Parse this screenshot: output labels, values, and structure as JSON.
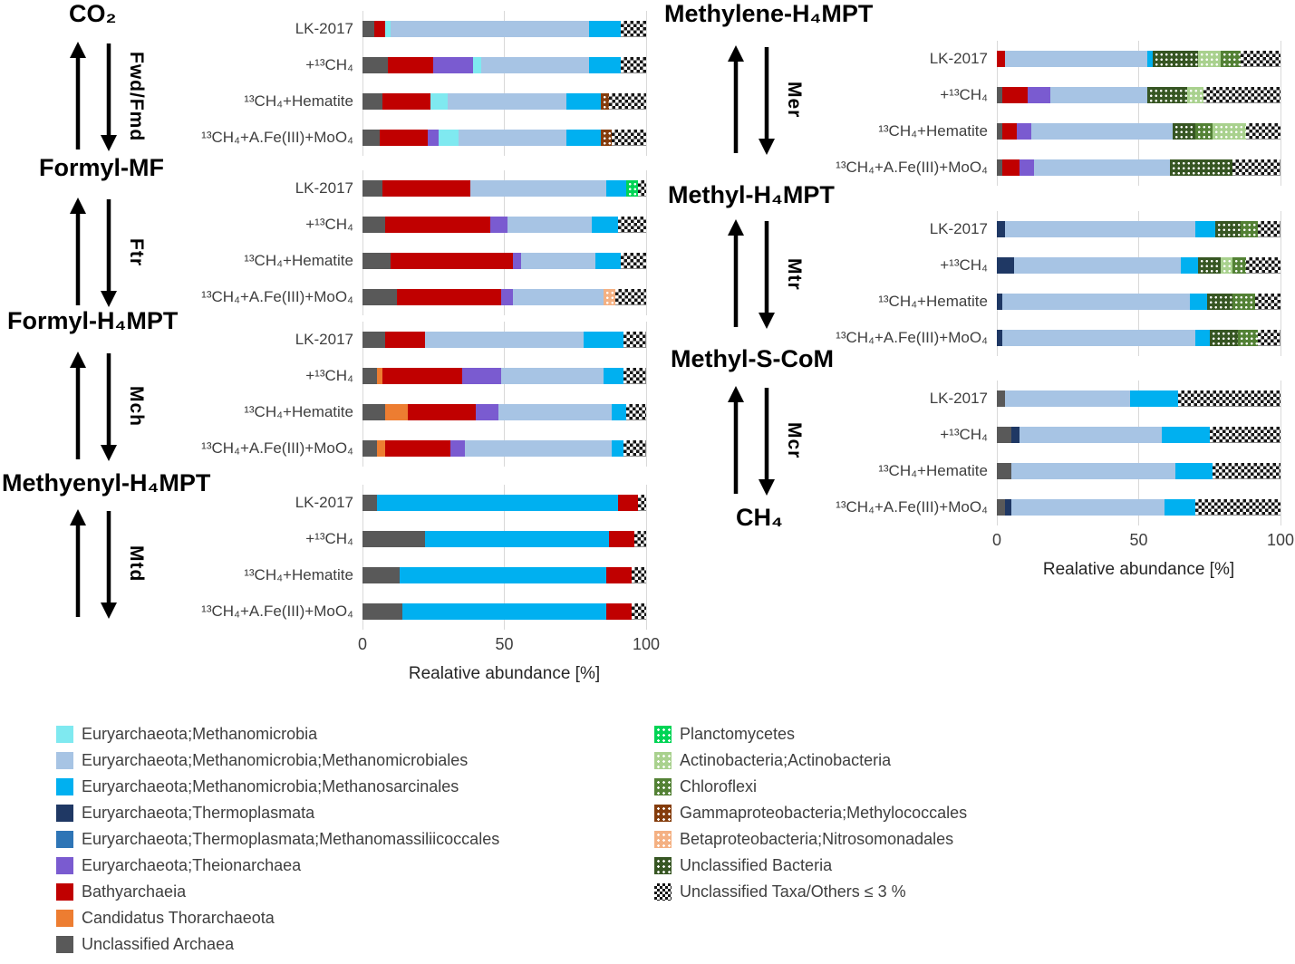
{
  "axis": {
    "label": "Realative abundance [%]",
    "ticks": [
      "0",
      "50",
      "100"
    ],
    "values": [
      0,
      50,
      100
    ],
    "range": [
      0,
      100
    ]
  },
  "pathway": {
    "end_label": "CH₄",
    "enzymes": [
      "Fwd/Fmd",
      "Ftr",
      "Mch",
      "Mtd",
      "Mer",
      "Mtr",
      "Mcr"
    ]
  },
  "taxa": {
    "mmb": {
      "label": "Euryarchaeota;Methanomicrobia",
      "color": "#7FE9F0",
      "pattern": "solid"
    },
    "mmbl": {
      "label": "Euryarchaeota;Methanomicrobia;Methanomicrobiales",
      "color": "#A7C4E4",
      "pattern": "solid"
    },
    "msar": {
      "label": "Euryarchaeota;Methanomicrobia;Methanosarcinales",
      "color": "#00B0F0",
      "pattern": "solid"
    },
    "thermo": {
      "label": "Euryarchaeota;Thermoplasmata",
      "color": "#1F3864",
      "pattern": "solid"
    },
    "mmas": {
      "label": "Euryarchaeota;Thermoplasmata;Methanomassiliicoccales",
      "color": "#2E75B6",
      "pattern": "solid"
    },
    "theio": {
      "label": "Euryarchaeota;Theionarchaea",
      "color": "#7A5BD0",
      "pattern": "solid"
    },
    "bathy": {
      "label": "Bathyarchaeia",
      "color": "#C00000",
      "pattern": "solid"
    },
    "thor": {
      "label": "Candidatus Thorarchaeota",
      "color": "#ED7D31",
      "pattern": "solid"
    },
    "uarch": {
      "label": "Unclassified Archaea",
      "color": "#595959",
      "pattern": "solid"
    },
    "planc": {
      "label": "Planctomycetes",
      "color": "#00D455",
      "pattern": "dots"
    },
    "actino": {
      "label": "Actinobacteria;Actinobacteria",
      "color": "#A9D18E",
      "pattern": "dots"
    },
    "chloro": {
      "label": "Chloroflexi",
      "color": "#538135",
      "pattern": "dots"
    },
    "gamma": {
      "label": "Gammaproteobacteria;Methylococcales",
      "color": "#843C0C",
      "pattern": "dots"
    },
    "beta": {
      "label": "Betaproteobacteria;Nitrosomonadales",
      "color": "#F4B183",
      "pattern": "dots"
    },
    "ubact": {
      "label": "Unclassified Bacteria",
      "color": "#375623",
      "pattern": "dots"
    },
    "others": {
      "label": "Unclassified Taxa/Others ≤ 3 %",
      "color": "#111111",
      "pattern": "checker"
    }
  },
  "legend": {
    "column1": [
      "mmb",
      "mmbl",
      "msar",
      "thermo",
      "mmas",
      "theio",
      "bathy",
      "thor",
      "uarch"
    ],
    "column2": [
      "planc",
      "actino",
      "chloro",
      "gamma",
      "beta",
      "ubact",
      "others"
    ]
  },
  "chart_data": [
    {
      "type": "bar",
      "stacked": true,
      "orientation": "horizontal",
      "xlim": [
        0,
        100
      ],
      "title": "CO₂",
      "categories": [
        "LK-2017",
        "+¹³CH₄",
        "¹³CH₄+Hematite",
        "¹³CH₄+A.Fe(III)+MoO₄"
      ],
      "bars": [
        [
          [
            "uarch",
            4
          ],
          [
            "bathy",
            4
          ],
          [
            "mmb",
            2
          ],
          [
            "mmbl",
            70
          ],
          [
            "msar",
            11
          ],
          [
            "others",
            9
          ]
        ],
        [
          [
            "uarch",
            9
          ],
          [
            "bathy",
            16
          ],
          [
            "theio",
            14
          ],
          [
            "mmb",
            3
          ],
          [
            "mmbl",
            38
          ],
          [
            "msar",
            11
          ],
          [
            "others",
            9
          ]
        ],
        [
          [
            "uarch",
            7
          ],
          [
            "bathy",
            17
          ],
          [
            "mmb",
            6
          ],
          [
            "mmbl",
            42
          ],
          [
            "msar",
            12
          ],
          [
            "gamma",
            3
          ],
          [
            "others",
            13
          ]
        ],
        [
          [
            "uarch",
            6
          ],
          [
            "bathy",
            17
          ],
          [
            "theio",
            4
          ],
          [
            "mmb",
            7
          ],
          [
            "mmbl",
            38
          ],
          [
            "msar",
            12
          ],
          [
            "gamma",
            4
          ],
          [
            "others",
            12
          ]
        ]
      ]
    },
    {
      "type": "bar",
      "stacked": true,
      "orientation": "horizontal",
      "xlim": [
        0,
        100
      ],
      "title": "Formyl-MF",
      "categories": [
        "LK-2017",
        "+¹³CH₄",
        "¹³CH₄+Hematite",
        "¹³CH₄+A.Fe(III)+MoO₄"
      ],
      "bars": [
        [
          [
            "uarch",
            7
          ],
          [
            "bathy",
            31
          ],
          [
            "mmbl",
            48
          ],
          [
            "msar",
            7
          ],
          [
            "planc",
            4
          ],
          [
            "others",
            3
          ]
        ],
        [
          [
            "uarch",
            8
          ],
          [
            "bathy",
            37
          ],
          [
            "theio",
            6
          ],
          [
            "mmbl",
            30
          ],
          [
            "msar",
            9
          ],
          [
            "others",
            10
          ]
        ],
        [
          [
            "uarch",
            10
          ],
          [
            "bathy",
            43
          ],
          [
            "theio",
            3
          ],
          [
            "mmbl",
            26
          ],
          [
            "msar",
            9
          ],
          [
            "others",
            9
          ]
        ],
        [
          [
            "uarch",
            12
          ],
          [
            "bathy",
            37
          ],
          [
            "theio",
            4
          ],
          [
            "mmbl",
            32
          ],
          [
            "beta",
            4
          ],
          [
            "others",
            11
          ]
        ]
      ]
    },
    {
      "type": "bar",
      "stacked": true,
      "orientation": "horizontal",
      "xlim": [
        0,
        100
      ],
      "title": "Formyl-H₄MPT",
      "categories": [
        "LK-2017",
        "+¹³CH₄",
        "¹³CH₄+Hematite",
        "¹³CH₄+A.Fe(III)+MoO₄"
      ],
      "bars": [
        [
          [
            "uarch",
            8
          ],
          [
            "bathy",
            14
          ],
          [
            "mmbl",
            56
          ],
          [
            "msar",
            14
          ],
          [
            "others",
            8
          ]
        ],
        [
          [
            "uarch",
            5
          ],
          [
            "thor",
            2
          ],
          [
            "bathy",
            28
          ],
          [
            "theio",
            14
          ],
          [
            "mmbl",
            36
          ],
          [
            "msar",
            7
          ],
          [
            "others",
            8
          ]
        ],
        [
          [
            "uarch",
            8
          ],
          [
            "thor",
            8
          ],
          [
            "bathy",
            24
          ],
          [
            "theio",
            8
          ],
          [
            "mmbl",
            40
          ],
          [
            "msar",
            5
          ],
          [
            "others",
            7
          ]
        ],
        [
          [
            "uarch",
            5
          ],
          [
            "thor",
            3
          ],
          [
            "bathy",
            23
          ],
          [
            "theio",
            5
          ],
          [
            "mmbl",
            52
          ],
          [
            "msar",
            4
          ],
          [
            "others",
            8
          ]
        ]
      ]
    },
    {
      "type": "bar",
      "stacked": true,
      "orientation": "horizontal",
      "xlim": [
        0,
        100
      ],
      "title": "Methyenyl-H₄MPT",
      "categories": [
        "LK-2017",
        "+¹³CH₄",
        "¹³CH₄+Hematite",
        "¹³CH₄+A.Fe(III)+MoO₄"
      ],
      "bars": [
        [
          [
            "uarch",
            5
          ],
          [
            "msar",
            85
          ],
          [
            "bathy",
            7
          ],
          [
            "others",
            3
          ]
        ],
        [
          [
            "uarch",
            22
          ],
          [
            "msar",
            65
          ],
          [
            "bathy",
            9
          ],
          [
            "others",
            4
          ]
        ],
        [
          [
            "uarch",
            13
          ],
          [
            "msar",
            73
          ],
          [
            "bathy",
            9
          ],
          [
            "others",
            5
          ]
        ],
        [
          [
            "uarch",
            14
          ],
          [
            "msar",
            72
          ],
          [
            "bathy",
            9
          ],
          [
            "others",
            5
          ]
        ]
      ]
    },
    {
      "type": "bar",
      "stacked": true,
      "orientation": "horizontal",
      "xlim": [
        0,
        100
      ],
      "title": "Methylene-H₄MPT",
      "categories": [
        "LK-2017",
        "+¹³CH₄",
        "¹³CH₄+Hematite",
        "¹³CH₄+A.Fe(III)+MoO₄"
      ],
      "bars": [
        [
          [
            "bathy",
            3
          ],
          [
            "mmbl",
            50
          ],
          [
            "msar",
            2
          ],
          [
            "ubact",
            16
          ],
          [
            "actino",
            8
          ],
          [
            "chloro",
            7
          ],
          [
            "others",
            14
          ]
        ],
        [
          [
            "uarch",
            2
          ],
          [
            "bathy",
            9
          ],
          [
            "theio",
            8
          ],
          [
            "mmbl",
            34
          ],
          [
            "ubact",
            14
          ],
          [
            "actino",
            6
          ],
          [
            "others",
            27
          ]
        ],
        [
          [
            "uarch",
            2
          ],
          [
            "bathy",
            5
          ],
          [
            "theio",
            5
          ],
          [
            "mmbl",
            50
          ],
          [
            "ubact",
            8
          ],
          [
            "chloro",
            6
          ],
          [
            "actino",
            12
          ],
          [
            "others",
            12
          ]
        ],
        [
          [
            "uarch",
            2
          ],
          [
            "bathy",
            6
          ],
          [
            "theio",
            5
          ],
          [
            "mmbl",
            48
          ],
          [
            "ubact",
            22
          ],
          [
            "others",
            17
          ]
        ]
      ]
    },
    {
      "type": "bar",
      "stacked": true,
      "orientation": "horizontal",
      "xlim": [
        0,
        100
      ],
      "title": "Methyl-H₄MPT",
      "categories": [
        "LK-2017",
        "+¹³CH₄",
        "¹³CH₄+Hematite",
        "¹³CH₄+A.Fe(III)+MoO₄"
      ],
      "bars": [
        [
          [
            "thermo",
            3
          ],
          [
            "mmbl",
            67
          ],
          [
            "msar",
            7
          ],
          [
            "ubact",
            9
          ],
          [
            "chloro",
            6
          ],
          [
            "others",
            8
          ]
        ],
        [
          [
            "thermo",
            6
          ],
          [
            "mmbl",
            59
          ],
          [
            "msar",
            6
          ],
          [
            "ubact",
            8
          ],
          [
            "actino",
            4
          ],
          [
            "chloro",
            5
          ],
          [
            "others",
            12
          ]
        ],
        [
          [
            "thermo",
            2
          ],
          [
            "mmbl",
            66
          ],
          [
            "msar",
            6
          ],
          [
            "ubact",
            9
          ],
          [
            "chloro",
            8
          ],
          [
            "others",
            9
          ]
        ],
        [
          [
            "thermo",
            2
          ],
          [
            "mmbl",
            68
          ],
          [
            "msar",
            5
          ],
          [
            "ubact",
            10
          ],
          [
            "chloro",
            7
          ],
          [
            "others",
            8
          ]
        ]
      ]
    },
    {
      "type": "bar",
      "stacked": true,
      "orientation": "horizontal",
      "xlim": [
        0,
        100
      ],
      "title": "Methyl-S-CoM",
      "categories": [
        "LK-2017",
        "+¹³CH₄",
        "¹³CH₄+Hematite",
        "¹³CH₄+A.Fe(III)+MoO₄"
      ],
      "bars": [
        [
          [
            "uarch",
            3
          ],
          [
            "mmbl",
            44
          ],
          [
            "msar",
            17
          ],
          [
            "others",
            36
          ]
        ],
        [
          [
            "uarch",
            5
          ],
          [
            "thermo",
            3
          ],
          [
            "mmbl",
            50
          ],
          [
            "msar",
            17
          ],
          [
            "others",
            25
          ]
        ],
        [
          [
            "uarch",
            5
          ],
          [
            "mmbl",
            58
          ],
          [
            "msar",
            13
          ],
          [
            "others",
            24
          ]
        ],
        [
          [
            "uarch",
            3
          ],
          [
            "thermo",
            2
          ],
          [
            "mmbl",
            54
          ],
          [
            "msar",
            11
          ],
          [
            "others",
            30
          ]
        ]
      ]
    }
  ]
}
